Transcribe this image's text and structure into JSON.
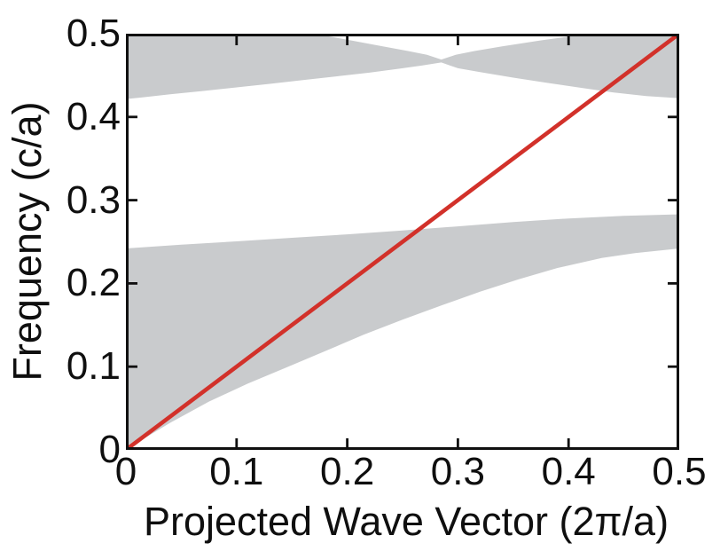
{
  "figure": {
    "background": "#ffffff",
    "axis_color": "#0f0f0f"
  },
  "chart_data": {
    "type": "area",
    "title": "",
    "xlabel": "Projected Wave Vector (2π/a)",
    "ylabel": "Frequency (c/a)",
    "xlim": [
      0,
      0.5
    ],
    "ylim": [
      0,
      0.5
    ],
    "grid": false,
    "legend": null,
    "x_tick_values": [
      0,
      0.1,
      0.2,
      0.3,
      0.4,
      0.5
    ],
    "x_tick_labels": [
      "0",
      "0.1",
      "0.2",
      "0.3",
      "0.4",
      "0.5"
    ],
    "y_tick_values": [
      0,
      0.1,
      0.2,
      0.3,
      0.4,
      0.5
    ],
    "y_tick_labels": [
      "0",
      "0.1",
      "0.2",
      "0.3",
      "0.4",
      "0.5"
    ],
    "inner_tick_values": [
      0.1,
      0.2,
      0.3,
      0.4
    ],
    "band_color": "#c9cbcd",
    "bands": [
      {
        "name": "lower-projected-band",
        "polygon": [
          [
            0,
            0
          ],
          [
            0,
            0.242
          ],
          [
            0.05,
            0.2465
          ],
          [
            0.1,
            0.2505
          ],
          [
            0.15,
            0.2548
          ],
          [
            0.2,
            0.259
          ],
          [
            0.25,
            0.2635
          ],
          [
            0.3,
            0.2685
          ],
          [
            0.35,
            0.2737
          ],
          [
            0.4,
            0.278
          ],
          [
            0.45,
            0.2812
          ],
          [
            0.5,
            0.283
          ],
          [
            0.5,
            0.242
          ],
          [
            0.46,
            0.2365
          ],
          [
            0.43,
            0.2305
          ],
          [
            0.39,
            0.2185
          ],
          [
            0.355,
            0.205
          ],
          [
            0.32,
            0.19
          ],
          [
            0.285,
            0.1735
          ],
          [
            0.25,
            0.1565
          ],
          [
            0.215,
            0.1385
          ],
          [
            0.18,
            0.1185
          ],
          [
            0.145,
            0.099
          ],
          [
            0.11,
            0.0795
          ],
          [
            0.075,
            0.058
          ],
          [
            0.04,
            0.0325
          ],
          [
            0.015,
            0.0125
          ],
          [
            0,
            0
          ]
        ]
      },
      {
        "name": "upper-projected-band",
        "polygon": [
          [
            0,
            0.5
          ],
          [
            0.17,
            0.5
          ],
          [
            0.2,
            0.4928
          ],
          [
            0.23,
            0.4853
          ],
          [
            0.255,
            0.4792
          ],
          [
            0.272,
            0.4746
          ],
          [
            0.285,
            0.469
          ],
          [
            0.298,
            0.4746
          ],
          [
            0.315,
            0.4792
          ],
          [
            0.34,
            0.4848
          ],
          [
            0.375,
            0.492
          ],
          [
            0.42,
            0.5
          ],
          [
            0.5,
            0.5
          ],
          [
            0.5,
            0.4225
          ],
          [
            0.47,
            0.4252
          ],
          [
            0.44,
            0.4295
          ],
          [
            0.41,
            0.4352
          ],
          [
            0.38,
            0.4412
          ],
          [
            0.35,
            0.4472
          ],
          [
            0.32,
            0.4538
          ],
          [
            0.3,
            0.4585
          ],
          [
            0.285,
            0.4655
          ],
          [
            0.268,
            0.4618
          ],
          [
            0.248,
            0.4581
          ],
          [
            0.22,
            0.4532
          ],
          [
            0.19,
            0.4487
          ],
          [
            0.16,
            0.4443
          ],
          [
            0.13,
            0.4398
          ],
          [
            0.1,
            0.4355
          ],
          [
            0.07,
            0.4312
          ],
          [
            0.04,
            0.4272
          ],
          [
            0.015,
            0.4235
          ],
          [
            0,
            0.4215
          ]
        ]
      }
    ],
    "light_line": {
      "name": "light-line",
      "color": "#d2312a",
      "width": 4.6,
      "points": [
        [
          0,
          0
        ],
        [
          0.5,
          0.5
        ]
      ]
    },
    "tick_style": {
      "length": 13,
      "width": 2.8,
      "direction": "in",
      "sides": [
        "bottom",
        "top",
        "left",
        "right"
      ]
    }
  }
}
